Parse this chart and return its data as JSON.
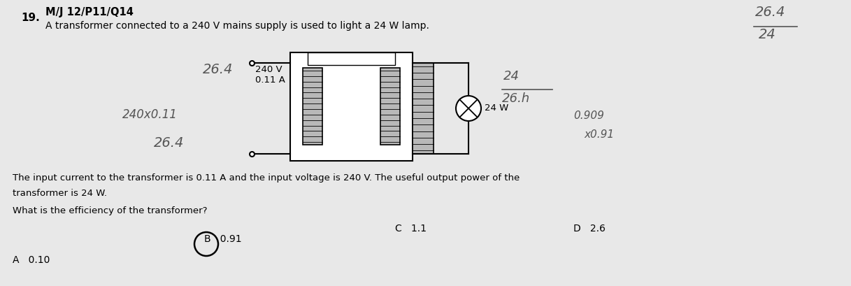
{
  "bg_color": "#e8e8e8",
  "question_number": "19.",
  "header": "M/J 12/P11/Q14",
  "title_line": "A transformer connected to a 240 V mains supply is used to light a 24 W lamp.",
  "body_text_1": "The input current to the transformer is 0.11 A and the input voltage is 240 V. The useful output power of the",
  "body_text_2": "transformer is 24 W.",
  "question_text": "What is the efficiency of the transformer?",
  "answer_A": "A   0.10",
  "answer_B": "B   0.91",
  "answer_C": "C   1.1",
  "answer_D": "D   2.6",
  "label_voltage": "240 V",
  "label_current": "0.11 A",
  "label_lamp": "24 W",
  "hw_top_right_1": "26.4",
  "hw_top_right_2": "24",
  "hw_left_1": "26.4",
  "hw_left_2": "240x0.11",
  "hw_left_3": "26.4",
  "hw_right_1": "24",
  "hw_right_2": "26.h",
  "hw_right_3": "0.909",
  "hw_right_4": "x0.91"
}
